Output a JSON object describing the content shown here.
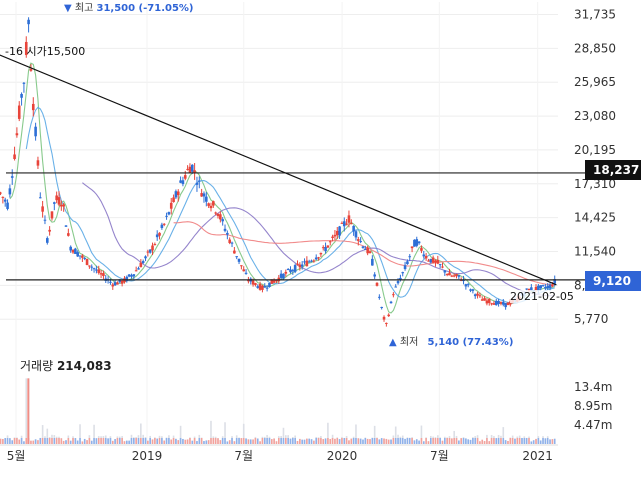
{
  "chart_data": {
    "type": "candlestick",
    "y_axis": {
      "ticks": [
        "31,735",
        "28,850",
        "25,965",
        "23,080",
        "20,195",
        "17,310",
        "14,425",
        "11,540",
        "8,655",
        "5,770"
      ],
      "ylim": [
        4000,
        32800
      ]
    },
    "x_axis": {
      "ticks": [
        "5월",
        "2019",
        "7월",
        "2020",
        "7월",
        "2021"
      ]
    },
    "price_series": {
      "anchors": [
        [
          "2018-04-02",
          16500
        ],
        [
          "2018-04-16",
          15500
        ],
        [
          "2018-04-30",
          20500
        ],
        [
          "2018-05-10",
          24500
        ],
        [
          "2018-05-17",
          26500
        ],
        [
          "2018-05-24",
          31500
        ],
        [
          "2018-06-01",
          25000
        ],
        [
          "2018-06-15",
          16500
        ],
        [
          "2018-06-29",
          12500
        ],
        [
          "2018-07-13",
          16000
        ],
        [
          "2018-07-27",
          15800
        ],
        [
          "2018-08-10",
          12000
        ],
        [
          "2018-09-03",
          11000
        ],
        [
          "2018-10-01",
          9800
        ],
        [
          "2018-10-29",
          8800
        ],
        [
          "2018-11-19",
          9000
        ],
        [
          "2018-12-10",
          9800
        ],
        [
          "2019-01-07",
          11500
        ],
        [
          "2019-02-04",
          14000
        ],
        [
          "2019-03-04",
          17200
        ],
        [
          "2019-03-25",
          19000
        ],
        [
          "2019-04-15",
          16500
        ],
        [
          "2019-05-13",
          15000
        ],
        [
          "2019-06-10",
          12000
        ],
        [
          "2019-07-08",
          9200
        ],
        [
          "2019-08-05",
          8400
        ],
        [
          "2019-09-02",
          9200
        ],
        [
          "2019-09-30",
          10000
        ],
        [
          "2019-10-28",
          10600
        ],
        [
          "2019-11-25",
          11500
        ],
        [
          "2019-12-23",
          13000
        ],
        [
          "2020-01-13",
          14400
        ],
        [
          "2020-02-03",
          12500
        ],
        [
          "2020-02-24",
          11200
        ],
        [
          "2020-03-16",
          6500
        ],
        [
          "2020-03-23",
          5140
        ],
        [
          "2020-04-06",
          8000
        ],
        [
          "2020-04-27",
          10000
        ],
        [
          "2020-05-18",
          12500
        ],
        [
          "2020-06-08",
          11000
        ],
        [
          "2020-06-29",
          10500
        ],
        [
          "2020-07-20",
          9500
        ],
        [
          "2020-08-10",
          9300
        ],
        [
          "2020-08-31",
          8200
        ],
        [
          "2020-09-21",
          7400
        ],
        [
          "2020-10-12",
          7200
        ],
        [
          "2020-11-02",
          7000
        ],
        [
          "2020-11-23",
          7400
        ],
        [
          "2020-12-14",
          8300
        ],
        [
          "2021-01-04",
          8400
        ],
        [
          "2021-01-25",
          8600
        ],
        [
          "2021-02-05",
          9120
        ]
      ]
    },
    "moving_average_colors": [
      "#7bc47f",
      "#5aa9e6",
      "#8a78c6",
      "#f08080"
    ],
    "max_label": "최고",
    "max_value": "31,500 (-71.05%)",
    "min_label": "최저",
    "min_value": "5,140 (77.43%)",
    "trendline_start_label": "-16 시가15,500",
    "trendline_end_label": "2021-02-05",
    "horizontal_lines": [
      {
        "label": "18,237",
        "value": 18237,
        "tag_color": "#111111"
      },
      {
        "label": "9,120",
        "value": 9120,
        "tag_color": "#2f64d6"
      }
    ],
    "volume": {
      "title": "거래량",
      "current": "214,083",
      "ticks": [
        "13.4m",
        "8.95m",
        "4.47m"
      ],
      "max": 17000000
    },
    "colors": {
      "up": "#e8443a",
      "down": "#2d6fd6",
      "trendline": "#111111",
      "grid": "#eeeeee"
    }
  }
}
